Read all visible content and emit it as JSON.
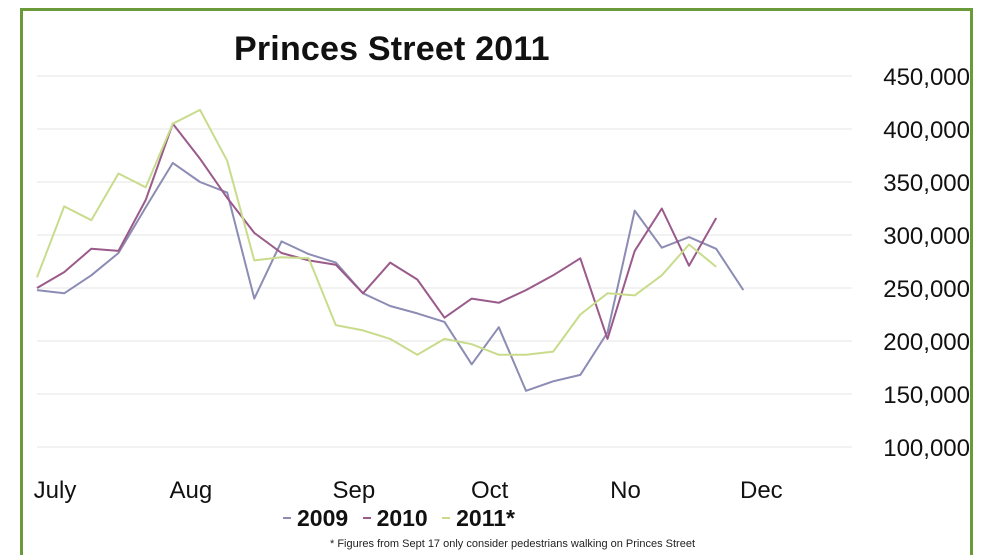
{
  "chart_data": {
    "type": "line",
    "title": "Princes Street 2011",
    "xlabel": "",
    "ylabel": "",
    "x_tick_labels": [
      {
        "label": "July",
        "index": 0
      },
      {
        "label": "Aug",
        "index": 5
      },
      {
        "label": "Sep",
        "index": 11
      },
      {
        "label": "Oct",
        "index": 16
      },
      {
        "label": "No",
        "index": 21
      },
      {
        "label": "Dec",
        "index": 26
      }
    ],
    "num_points": 31,
    "ylim": [
      100000,
      450000
    ],
    "y_ticks": [
      100000,
      150000,
      200000,
      250000,
      300000,
      350000,
      400000,
      450000
    ],
    "y_tick_labels": [
      "100,000",
      "150,000",
      "200,000",
      "250,000",
      "300,000",
      "350,000",
      "400,000",
      "450,000"
    ],
    "y_axis_side": "right",
    "grid": true,
    "legend_position": "bottom",
    "series": [
      {
        "name": "2009",
        "color": "#8c8cb4",
        "values": [
          248000,
          245000,
          262000,
          283000,
          326000,
          368000,
          350000,
          340000,
          240000,
          294000,
          282000,
          274000,
          245000,
          233000,
          226000,
          218000,
          178000,
          213000,
          153000,
          162000,
          168000,
          208000,
          323000,
          288000,
          298000,
          287000,
          248000
        ]
      },
      {
        "name": "2010",
        "color": "#9a5a8a",
        "values": [
          250000,
          265000,
          287000,
          285000,
          333000,
          405000,
          372000,
          335000,
          302000,
          283000,
          276000,
          272000,
          245000,
          274000,
          258000,
          222000,
          240000,
          236000,
          248000,
          262000,
          278000,
          202000,
          285000,
          325000,
          271000,
          316000
        ]
      },
      {
        "name": "2011*",
        "color": "#c8dc8c",
        "values": [
          260000,
          327000,
          314000,
          358000,
          345000,
          405000,
          418000,
          370000,
          276000,
          279000,
          278000,
          215000,
          210000,
          202000,
          187000,
          202000,
          197000,
          187000,
          187000,
          190000,
          225000,
          245000,
          243000,
          262000,
          291000,
          270000
        ]
      }
    ],
    "footnote": "* Figures  from Sept 17 only consider pedestrians walking on Princes Street"
  }
}
